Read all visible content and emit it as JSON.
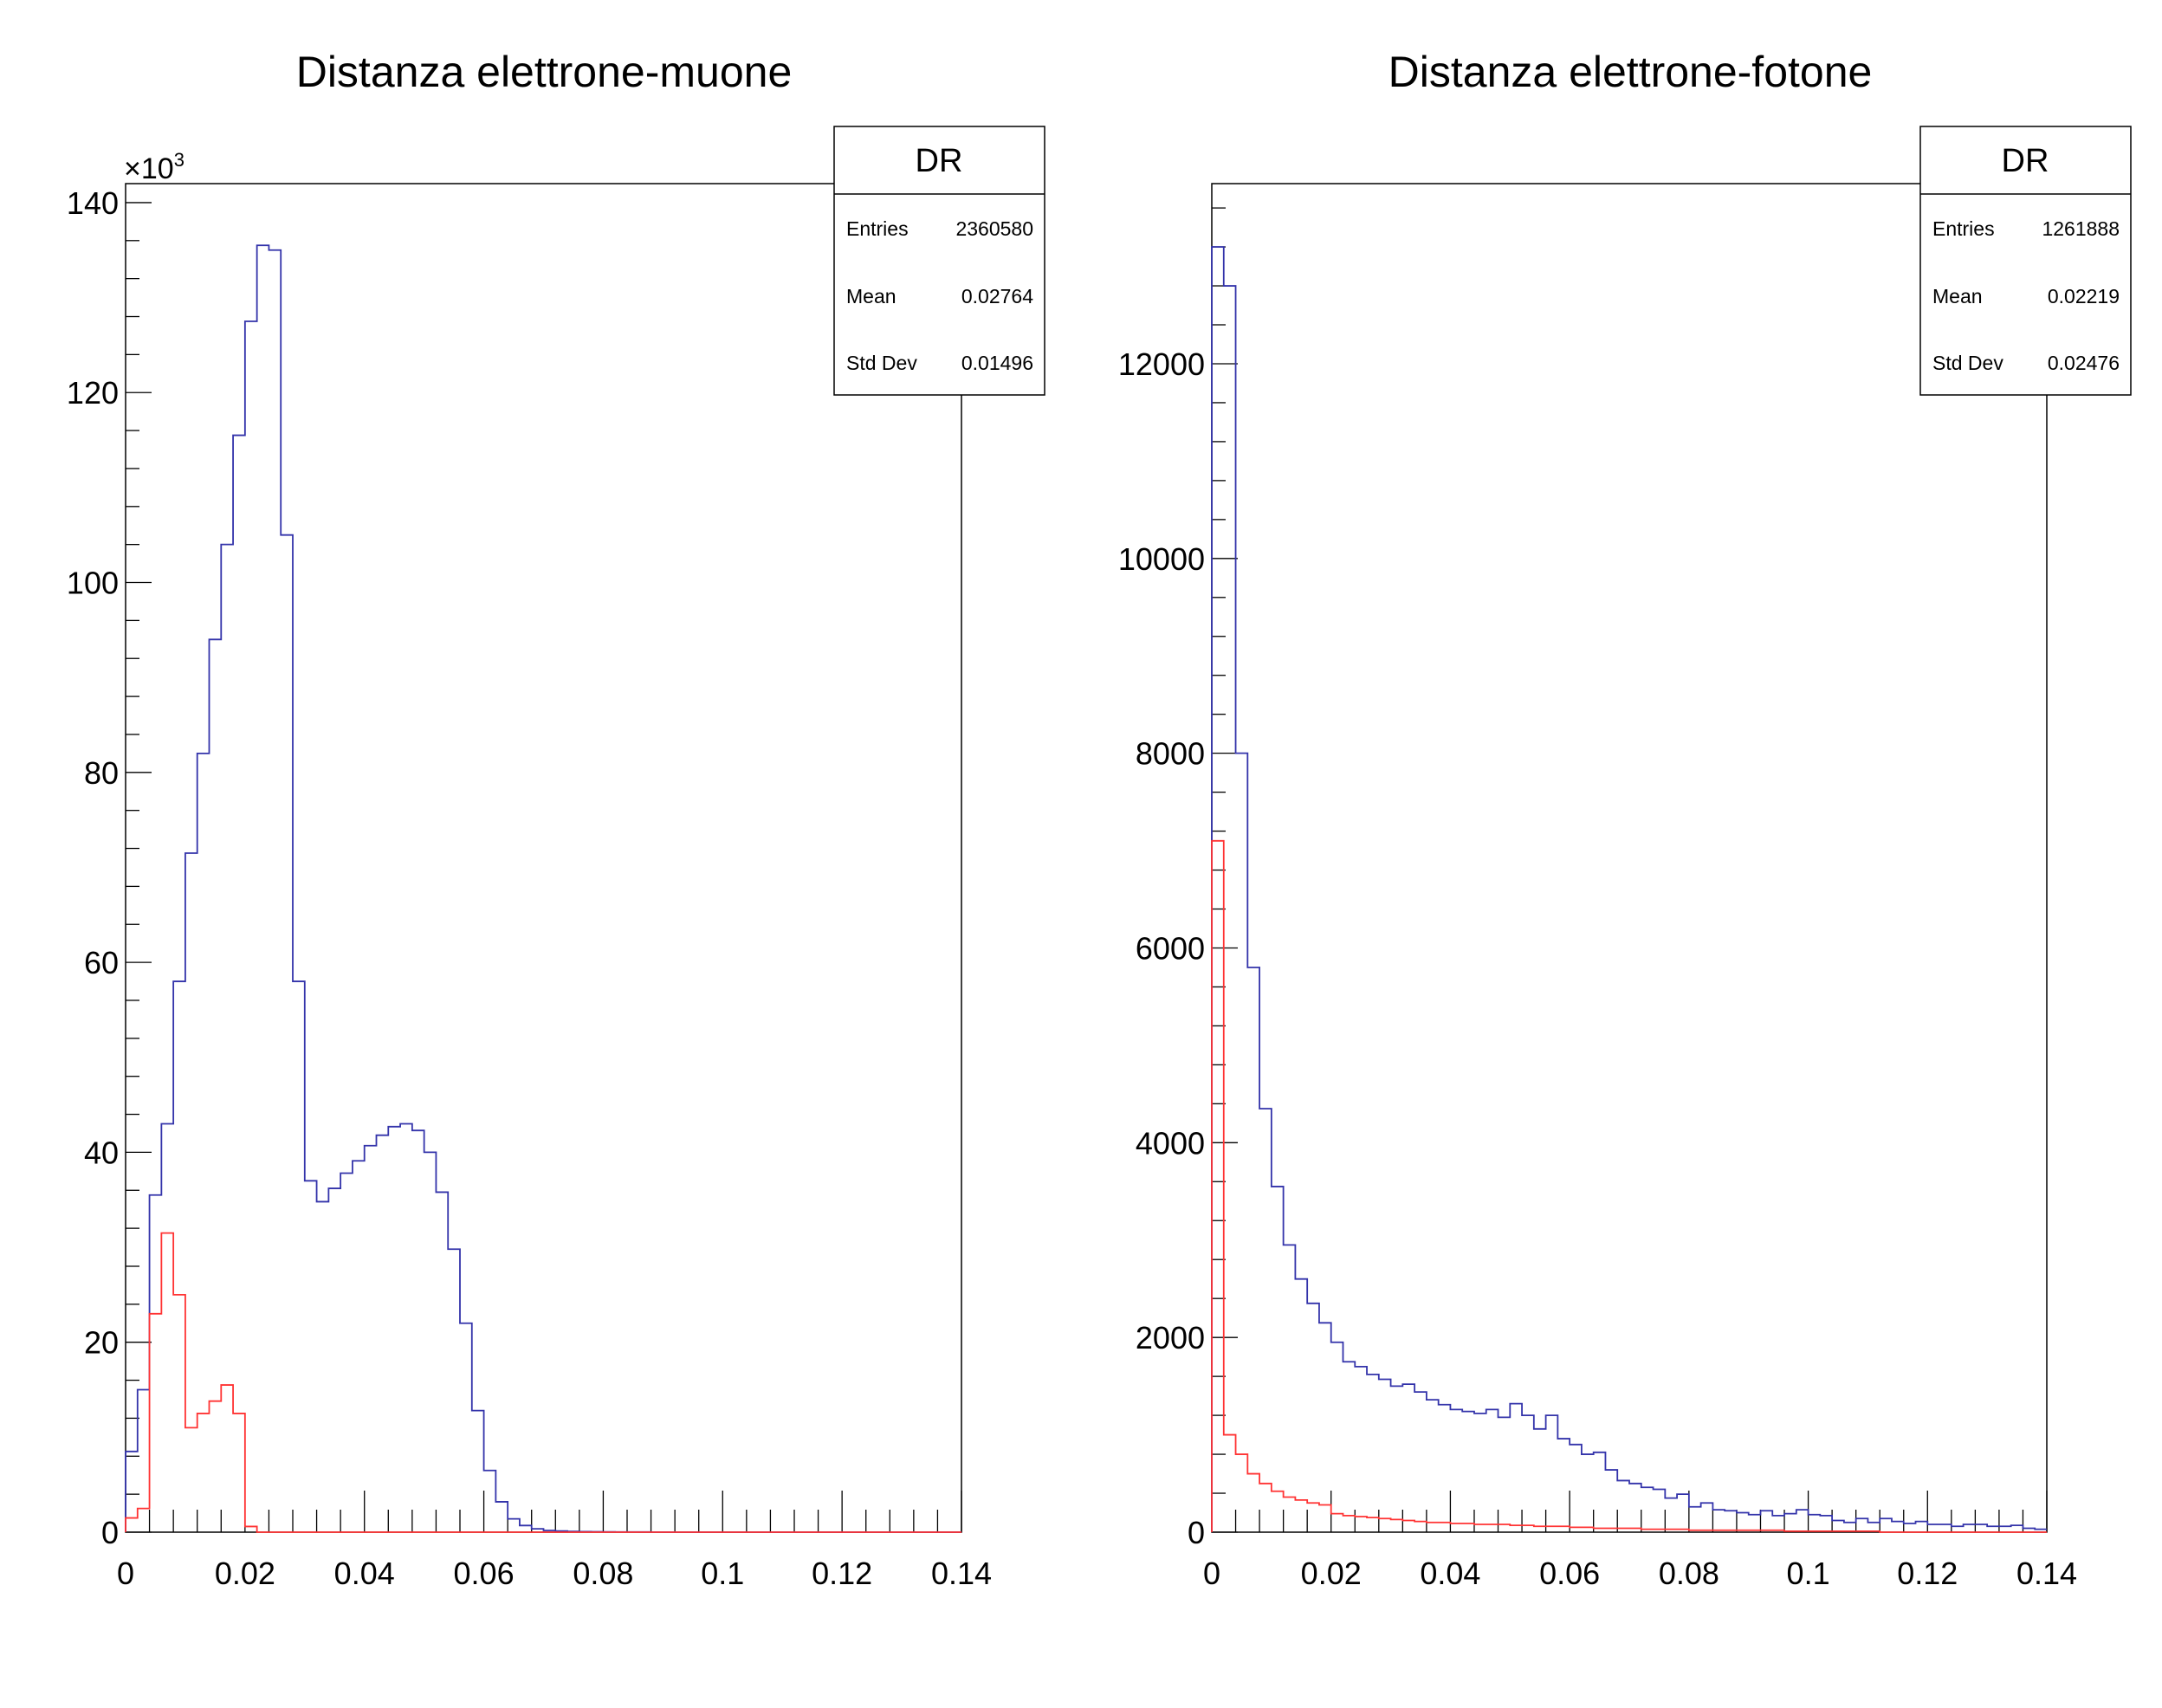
{
  "chart_data": [
    {
      "type": "histogram",
      "title": "Distanza elettrone-muone",
      "xlabel": "",
      "ylabel": "",
      "xlim": [
        0,
        0.14
      ],
      "ylim": [
        0,
        142000
      ],
      "x_ticks": [
        "0",
        "0.02",
        "0.04",
        "0.06",
        "0.08",
        "0.1",
        "0.12",
        "0.14"
      ],
      "y_ticks": [
        "0",
        "20",
        "40",
        "60",
        "80",
        "100",
        "120",
        "140"
      ],
      "y_multiplier": "×10",
      "y_multiplier_exp": "3",
      "bin_width": 0.002,
      "stats": {
        "name": "DR",
        "rows": [
          {
            "label": "Entries",
            "value": "2360580"
          },
          {
            "label": "Mean",
            "value": "0.02764"
          },
          {
            "label": "Std Dev",
            "value": "0.01496"
          }
        ]
      },
      "series": [
        {
          "color": "#3333aa",
          "values": [
            8500,
            15000,
            35500,
            43000,
            58000,
            71500,
            82000,
            94000,
            104000,
            115500,
            127500,
            135500,
            135000,
            105000,
            58000,
            37000,
            34800,
            36200,
            37800,
            39100,
            40700,
            41800,
            42700,
            43000,
            42300,
            40000,
            35800,
            29800,
            22000,
            12800,
            6500,
            3200,
            1400,
            700,
            350,
            180,
            120,
            80,
            50,
            40,
            30,
            25,
            20,
            15,
            10,
            5,
            0,
            0,
            0,
            0,
            0,
            0,
            0,
            0,
            0,
            0,
            0,
            0,
            0,
            0,
            0,
            0,
            0,
            0,
            0,
            0,
            0,
            0,
            0,
            0
          ]
        },
        {
          "color": "#ff3333",
          "values": [
            1500,
            2500,
            23000,
            31500,
            25000,
            11000,
            12500,
            13800,
            15500,
            12500,
            600,
            0,
            0,
            0,
            0,
            0,
            0,
            0,
            0,
            0,
            0,
            0,
            0,
            0,
            0,
            0,
            0,
            0,
            0,
            0,
            0,
            0,
            0,
            0,
            0,
            0,
            0,
            0,
            0,
            0,
            0,
            0,
            0,
            0,
            0,
            0,
            0,
            0,
            0,
            0,
            0,
            0,
            0,
            0,
            0,
            0,
            0,
            0,
            0,
            0,
            0,
            0,
            0,
            0,
            0,
            0,
            0,
            0,
            0,
            0
          ]
        }
      ]
    },
    {
      "type": "histogram",
      "title": "Distanza elettrone-fotone",
      "xlabel": "",
      "ylabel": "",
      "xlim": [
        0,
        0.14
      ],
      "ylim": [
        0,
        13850
      ],
      "x_ticks": [
        "0",
        "0.02",
        "0.04",
        "0.06",
        "0.08",
        "0.1",
        "0.12",
        "0.14"
      ],
      "y_ticks": [
        "0",
        "2000",
        "4000",
        "6000",
        "8000",
        "10000",
        "12000"
      ],
      "bin_width": 0.002,
      "stats": {
        "name": "DR",
        "rows": [
          {
            "label": "Entries",
            "value": "1261888"
          },
          {
            "label": "Mean",
            "value": "0.02219"
          },
          {
            "label": "Std Dev",
            "value": "0.02476"
          }
        ]
      },
      "series": [
        {
          "color": "#3333aa",
          "values": [
            13200,
            12800,
            8000,
            5800,
            4350,
            3550,
            2950,
            2600,
            2350,
            2150,
            1950,
            1750,
            1700,
            1620,
            1570,
            1500,
            1520,
            1440,
            1360,
            1310,
            1260,
            1240,
            1220,
            1260,
            1180,
            1320,
            1200,
            1060,
            1200,
            960,
            900,
            800,
            820,
            640,
            530,
            500,
            460,
            440,
            350,
            390,
            260,
            300,
            230,
            220,
            200,
            180,
            220,
            170,
            190,
            230,
            180,
            170,
            120,
            100,
            140,
            100,
            140,
            110,
            90,
            110,
            80,
            80,
            60,
            80,
            80,
            60,
            60,
            70,
            40,
            30
          ]
        },
        {
          "color": "#ff3333",
          "values": [
            7100,
            1000,
            800,
            600,
            500,
            420,
            360,
            330,
            300,
            280,
            190,
            170,
            160,
            150,
            140,
            130,
            120,
            110,
            100,
            100,
            90,
            90,
            80,
            80,
            80,
            70,
            70,
            60,
            60,
            60,
            50,
            50,
            40,
            40,
            40,
            40,
            30,
            30,
            30,
            30,
            20,
            20,
            20,
            20,
            20,
            20,
            20,
            20,
            10,
            10,
            10,
            10,
            10,
            10,
            10,
            10,
            0,
            0,
            0,
            0,
            0,
            0,
            0,
            0,
            0,
            0,
            0,
            0,
            0,
            0
          ]
        }
      ]
    }
  ]
}
